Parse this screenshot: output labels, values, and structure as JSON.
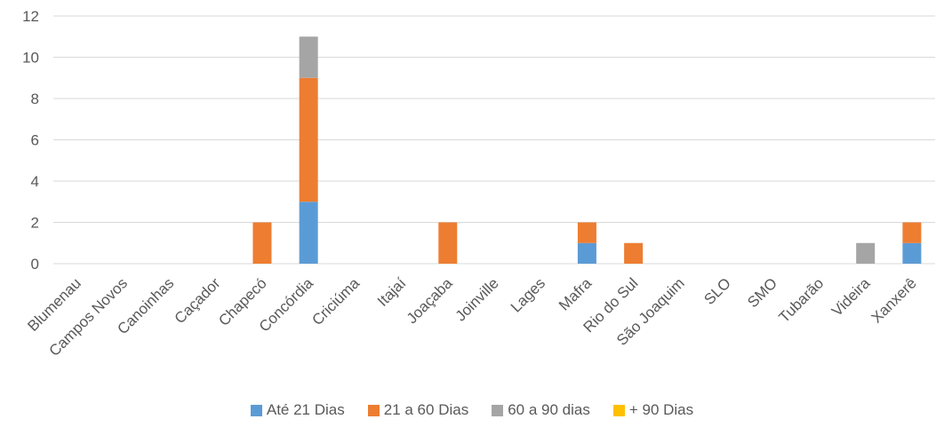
{
  "chart_data": {
    "type": "bar",
    "stacked": true,
    "categories": [
      "Blumenau",
      "Campos Novos",
      "Canoinhas",
      "Caçador",
      "Chapecó",
      "Concórdia",
      "Criciúma",
      "Itajaí",
      "Joaçaba",
      "Joinville",
      "Lages",
      "Mafra",
      "Rio do Sul",
      "São Joaquim",
      "SLO",
      "SMO",
      "Tubarão",
      "Videira",
      "Xanxerê"
    ],
    "series": [
      {
        "name": "Até 21 Dias",
        "color": "#5B9BD5",
        "values": [
          0,
          0,
          0,
          0,
          0,
          3,
          0,
          0,
          0,
          0,
          0,
          1,
          0,
          0,
          0,
          0,
          0,
          0,
          1
        ]
      },
      {
        "name": "21 a 60 Dias",
        "color": "#ED7D31",
        "values": [
          0,
          0,
          0,
          0,
          2,
          6,
          0,
          0,
          2,
          0,
          0,
          1,
          1,
          0,
          0,
          0,
          0,
          0,
          1
        ]
      },
      {
        "name": "60 a 90 dias",
        "color": "#A5A5A5",
        "values": [
          0,
          0,
          0,
          0,
          0,
          2,
          0,
          0,
          0,
          0,
          0,
          0,
          0,
          0,
          0,
          0,
          0,
          1,
          0
        ]
      },
      {
        "name": "+ 90 Dias",
        "color": "#FFC000",
        "values": [
          0,
          0,
          0,
          0,
          0,
          0,
          0,
          0,
          0,
          0,
          0,
          0,
          0,
          0,
          0,
          0,
          0,
          0,
          0
        ]
      }
    ],
    "ylim": [
      0,
      12
    ],
    "yticks": [
      0,
      2,
      4,
      6,
      8,
      10,
      12
    ],
    "grid": true,
    "legend_position": "bottom",
    "title": "",
    "xlabel": "",
    "ylabel": ""
  }
}
